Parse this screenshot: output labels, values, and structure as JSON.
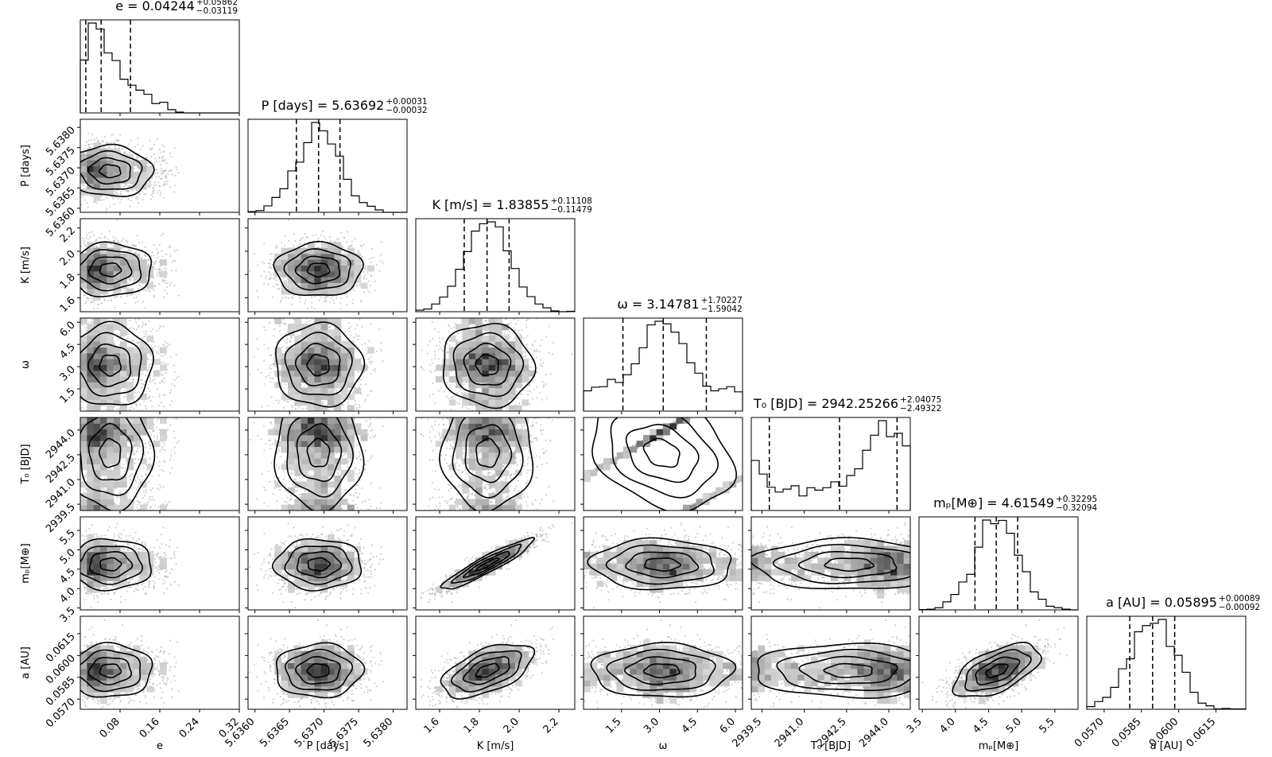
{
  "chart_data": {
    "type": "corner",
    "parameters": [
      {
        "key": "e",
        "label": "e",
        "title": {
          "name": "e",
          "median": "0.04244",
          "plus": "+0.05862",
          "minus": "−0.03119"
        },
        "range": [
          0.0,
          0.32
        ],
        "ticks": [
          0.08,
          0.16,
          0.24,
          0.32
        ],
        "tick_labels": [
          "0.08",
          "0.16",
          "0.24",
          "0.32"
        ],
        "quantiles": [
          0.011,
          0.042,
          0.101
        ]
      },
      {
        "key": "P",
        "label": "P [days]",
        "title": {
          "name": "P [days]",
          "median": "5.63692",
          "plus": "+0.00031",
          "minus": "−0.00032"
        },
        "range": [
          5.6359,
          5.6382
        ],
        "ticks": [
          5.636,
          5.6365,
          5.637,
          5.6375,
          5.638
        ],
        "tick_labels": [
          "5.6360",
          "5.6365",
          "5.6370",
          "5.6375",
          "5.6380"
        ],
        "quantiles": [
          5.6366,
          5.63692,
          5.63723
        ]
      },
      {
        "key": "K",
        "label": "K [m/s]",
        "title": {
          "name": "K [m/s]",
          "median": "1.83855",
          "plus": "+0.11108",
          "minus": "−0.11479"
        },
        "range": [
          1.48,
          2.28
        ],
        "ticks": [
          1.6,
          1.8,
          2.0,
          2.2
        ],
        "tick_labels": [
          "1.6",
          "1.8",
          "2.0",
          "2.2"
        ],
        "quantiles": [
          1.7238,
          1.83855,
          1.9496
        ]
      },
      {
        "key": "omega",
        "label": "ω",
        "title": {
          "name": "ω",
          "median": "3.14781",
          "plus": "+1.70227",
          "minus": "−1.59042"
        },
        "range": [
          0.0,
          6.28
        ],
        "ticks": [
          1.5,
          3.0,
          4.5,
          6.0
        ],
        "tick_labels": [
          "1.5",
          "3.0",
          "4.5",
          "6.0"
        ],
        "quantiles": [
          1.557,
          3.148,
          4.85
        ]
      },
      {
        "key": "T0",
        "label": "T₀ [BJD]",
        "title": {
          "name": "T₀ [BJD]",
          "median": "2942.25266",
          "plus": "+2.04075",
          "minus": "−2.49322"
        },
        "range": [
          2939.12,
          2944.76
        ],
        "ticks": [
          2939.5,
          2941.0,
          2942.5,
          2944.0
        ],
        "tick_labels": [
          "2939.5",
          "2941.0",
          "2942.5",
          "2944.0"
        ],
        "quantiles": [
          2939.76,
          2942.25,
          2944.29
        ]
      },
      {
        "key": "mp",
        "label": "mₚ[M⊕]",
        "title": {
          "name": "mₚ[M⊕]",
          "median": "4.61549",
          "plus": "+0.32295",
          "minus": "−0.32094"
        },
        "range": [
          3.45,
          5.85
        ],
        "ticks": [
          3.5,
          4.0,
          4.5,
          5.0,
          5.5
        ],
        "tick_labels": [
          "3.5",
          "4.0",
          "4.5",
          "5.0",
          "5.5"
        ],
        "quantiles": [
          4.2946,
          4.6155,
          4.9384
        ]
      },
      {
        "key": "a",
        "label": "a [AU]",
        "title": {
          "name": "a [AU]",
          "median": "0.05895",
          "plus": "+0.00089",
          "minus": "−0.00092"
        },
        "range": [
          0.0563,
          0.0627
        ],
        "ticks": [
          0.057,
          0.0585,
          0.06,
          0.0615
        ],
        "tick_labels": [
          "0.0570",
          "0.0585",
          "0.0600",
          "0.0615"
        ],
        "quantiles": [
          0.05803,
          0.05895,
          0.05984
        ]
      }
    ],
    "axis_labels_bottom": [
      "e",
      "P [days]",
      "K [m/s]",
      "ω",
      "T₀ [BJD]",
      "mₚ[M⊕]",
      "a [AU]"
    ],
    "axis_labels_left": [
      "P [days]",
      "K [m/s]",
      "ω",
      "T₀ [BJD]",
      "mₚ[M⊕]",
      "a [AU]"
    ],
    "correlations": {
      "K-mp": 0.93,
      "omega-T0": "wrapped linear (strong)"
    },
    "colors": {
      "ink": "#000000",
      "scatter": "#9a9a9a",
      "shade_dark": "#333333",
      "shade_light": "#ededed"
    }
  }
}
